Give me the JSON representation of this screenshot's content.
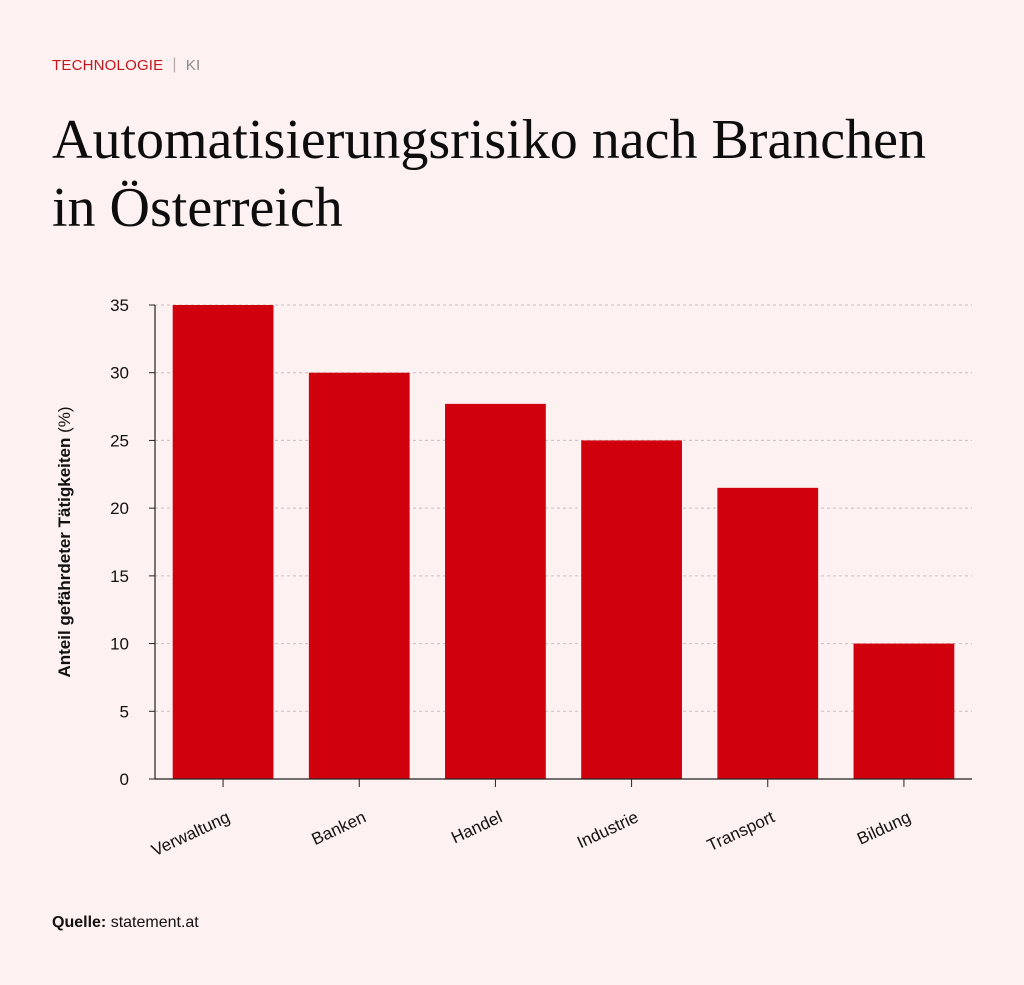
{
  "header": {
    "category": "TECHNOLOGIE",
    "separator": "|",
    "subcategory": "KI",
    "title": "Automatisierungsrisiko nach Branchen in Österreich"
  },
  "footer": {
    "source_label": "Quelle:",
    "source_value": "statement.at"
  },
  "colors": {
    "bar": "#d0000c",
    "accent": "#c4161c",
    "background": "#fdf1f1",
    "grid": "#c8c0c0"
  },
  "chart_data": {
    "type": "bar",
    "title": "Automatisierungsrisiko nach Branchen in Österreich",
    "xlabel": "",
    "ylabel": "Anteil gefährdeter Tätigkeiten (%)",
    "categories": [
      "Verwaltung",
      "Banken",
      "Handel",
      "Industrie",
      "Transport",
      "Bildung"
    ],
    "values": [
      35,
      30,
      27.7,
      25,
      21.5,
      10
    ],
    "ylim": [
      0,
      35
    ],
    "yticks": [
      0,
      5,
      10,
      15,
      20,
      25,
      30,
      35
    ],
    "grid": true,
    "legend": "none"
  }
}
